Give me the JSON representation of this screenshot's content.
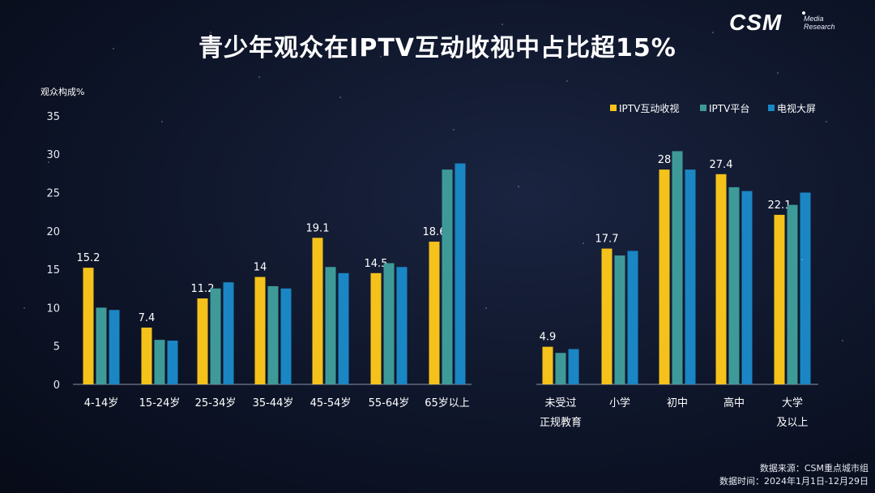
{
  "title": "青少年观众在IPTV互动收视中占比超15%",
  "logo": {
    "main": "CSM",
    "sub1": "Media",
    "sub2": "Research"
  },
  "source": {
    "line1": "数据来源：CSM重点城市组",
    "line2": "数据时间：2024年1月1日-12月29日"
  },
  "colors": {
    "iptv_interactive": "#F5C21B",
    "iptv_platform": "#3E9A98",
    "tv_big_screen": "#1A86C4"
  },
  "chart_data": {
    "type": "bar",
    "ylabel": "观众构成%",
    "ylim": [
      0,
      35
    ],
    "yticks": [
      0,
      5,
      10,
      15,
      20,
      25,
      30,
      35
    ],
    "legend_position": "top-right",
    "grid": false,
    "groups": [
      {
        "categories": [
          "4-14岁",
          "15-24岁",
          "25-34岁",
          "35-44岁",
          "45-54岁",
          "55-64岁",
          "65岁以上"
        ]
      },
      {
        "categories": [
          "未受过\n正规教育",
          "小学",
          "初中",
          "高中",
          "大学\n及以上"
        ]
      }
    ],
    "series": [
      {
        "name": "IPTV互动收视",
        "color": "#F5C21B",
        "values": [
          15.2,
          7.4,
          11.2,
          14,
          19.1,
          14.5,
          18.6,
          4.9,
          17.7,
          28,
          27.4,
          22.1
        ],
        "labels": [
          "15.2",
          "7.4",
          "11.2",
          "14",
          "19.1",
          "14.5",
          "18.6",
          "4.9",
          "17.7",
          "28",
          "27.4",
          "22.1"
        ]
      },
      {
        "name": "IPTV平台",
        "color": "#3E9A98",
        "values": [
          10.0,
          5.8,
          12.5,
          12.8,
          15.3,
          15.8,
          28.0,
          4.1,
          16.8,
          30.4,
          25.7,
          23.4
        ]
      },
      {
        "name": "电视大屏",
        "color": "#1A86C4",
        "values": [
          9.7,
          5.7,
          13.3,
          12.5,
          14.5,
          15.3,
          28.8,
          4.6,
          17.4,
          28.0,
          25.2,
          25.0
        ]
      }
    ]
  }
}
